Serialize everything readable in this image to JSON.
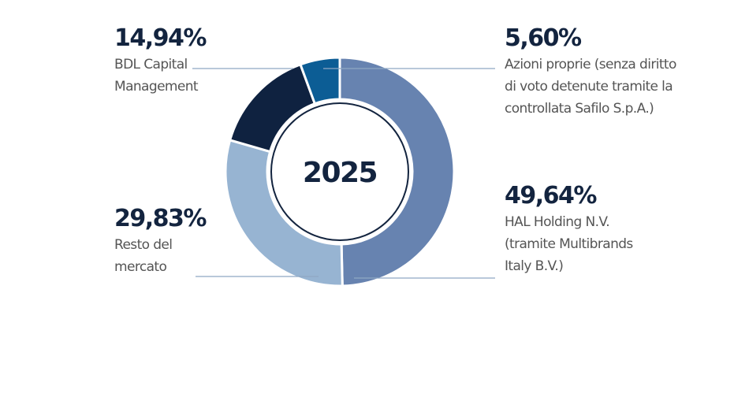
{
  "chart_data": {
    "type": "pie",
    "center_label": "2025",
    "slices": [
      {
        "value": 49.64,
        "value_label": "49,64%",
        "label_lines": [
          "HAL Holding N.V.",
          "(tramite Multibrands",
          "Italy B.V.)"
        ],
        "color": "#6783b0"
      },
      {
        "value": 29.83,
        "value_label": "29,83%",
        "label_lines": [
          "Resto del",
          "mercato"
        ],
        "color": "#97b4d2"
      },
      {
        "value": 14.94,
        "value_label": "14,94%",
        "label_lines": [
          "BDL Capital",
          "Management"
        ],
        "color": "#0f2240"
      },
      {
        "value": 5.6,
        "value_label": "5,60%",
        "label_lines": [
          "Azioni proprie (senza diritto",
          "di voto detenute tramite la",
          "controllata Safilo S.p.A.)"
        ],
        "color": "#0c5d95"
      }
    ]
  }
}
